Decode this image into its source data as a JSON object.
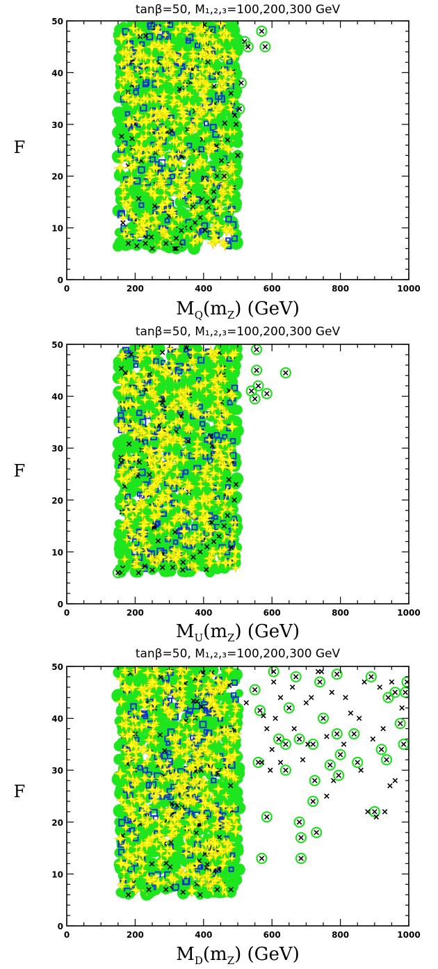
{
  "chart_data": [
    {
      "type": "scatter",
      "title": "tanβ=50, M₁,₂,₃=100,200,300 GeV",
      "xlabel": {
        "main": "M",
        "sub": "Q",
        "rest": "(m",
        "sub2": "Z",
        "tail": ")  (GeV)"
      },
      "ylabel": "F",
      "xlim": [
        0,
        1000
      ],
      "ylim": [
        0,
        50
      ],
      "xticks": [
        0,
        200,
        400,
        600,
        800,
        1000
      ],
      "yticks": [
        0,
        10,
        20,
        30,
        40,
        50
      ],
      "grid": false,
      "dense_region": {
        "x_min": 150,
        "x_max": 500,
        "y_min": 6,
        "y_max": 50
      },
      "edge_points": [
        [
          480,
          36
        ],
        [
          495,
          30
        ],
        [
          470,
          27
        ],
        [
          452,
          23
        ],
        [
          500,
          24
        ],
        [
          440,
          20
        ],
        [
          430,
          17
        ],
        [
          415,
          14
        ],
        [
          410,
          15
        ],
        [
          390,
          12
        ],
        [
          375,
          11
        ],
        [
          360,
          10
        ],
        [
          345,
          10
        ],
        [
          335,
          9.5
        ],
        [
          320,
          8
        ],
        [
          315,
          6
        ],
        [
          290,
          7
        ],
        [
          250,
          6
        ],
        [
          230,
          7
        ],
        [
          205,
          6.5
        ],
        [
          180,
          7
        ]
      ],
      "outliers": [
        [
          520,
          46
        ],
        [
          530,
          45
        ],
        [
          580,
          45
        ],
        [
          570,
          48
        ],
        [
          510,
          38
        ],
        [
          505,
          33
        ],
        [
          500,
          24
        ],
        [
          460,
          20
        ],
        [
          320,
          6
        ]
      ]
    },
    {
      "type": "scatter",
      "title": "tanβ=50, M₁,₂,₃=100,200,300 GeV",
      "xlabel": {
        "main": "M",
        "sub": "U",
        "rest": "(m",
        "sub2": "Z",
        "tail": ")  (GeV)"
      },
      "ylabel": "F",
      "xlim": [
        0,
        1000
      ],
      "ylim": [
        0,
        50
      ],
      "xticks": [
        0,
        200,
        400,
        600,
        800,
        1000
      ],
      "yticks": [
        0,
        10,
        20,
        30,
        40,
        50
      ],
      "grid": false,
      "dense_region": {
        "x_min": 150,
        "x_max": 500,
        "y_min": 6,
        "y_max": 50
      },
      "edge_points": [
        [
          495,
          23
        ],
        [
          490,
          20
        ],
        [
          470,
          17
        ],
        [
          460,
          15
        ],
        [
          445,
          13
        ],
        [
          430,
          12
        ],
        [
          410,
          11
        ],
        [
          390,
          10
        ],
        [
          370,
          9
        ],
        [
          340,
          8
        ],
        [
          310,
          7
        ],
        [
          280,
          7
        ],
        [
          250,
          6.5
        ],
        [
          210,
          6
        ],
        [
          160,
          6
        ]
      ],
      "outliers": [
        [
          555,
          49
        ],
        [
          555,
          45
        ],
        [
          560,
          42
        ],
        [
          550,
          39.5
        ],
        [
          585,
          40.5
        ],
        [
          640,
          44.5
        ],
        [
          150,
          6
        ],
        [
          540,
          41
        ]
      ]
    },
    {
      "type": "scatter",
      "title": "tanβ=50, M₁,₂,₃=100,200,300 GeV",
      "xlabel": {
        "main": "M",
        "sub": "D",
        "rest": "(m",
        "sub2": "Z",
        "tail": ")  (GeV)"
      },
      "ylabel": "F",
      "xlim": [
        0,
        1000
      ],
      "ylim": [
        0,
        50
      ],
      "xticks": [
        0,
        200,
        400,
        600,
        800,
        1000
      ],
      "yticks": [
        0,
        10,
        20,
        30,
        40,
        50
      ],
      "grid": false,
      "dense_region": {
        "x_min": 150,
        "x_max": 505,
        "y_min": 6,
        "y_max": 50
      },
      "edge_points": [
        [
          480,
          7
        ],
        [
          440,
          7
        ],
        [
          390,
          6
        ],
        [
          340,
          6.5
        ],
        [
          290,
          7
        ],
        [
          240,
          7
        ],
        [
          180,
          6
        ]
      ],
      "outliers": [
        [
          525,
          43
        ],
        [
          550,
          45.5
        ],
        [
          565,
          41.5
        ],
        [
          575,
          40.5
        ],
        [
          585,
          38
        ],
        [
          560,
          31.5
        ],
        [
          570,
          31.5
        ],
        [
          585,
          21
        ],
        [
          570,
          13
        ],
        [
          605,
          49
        ],
        [
          610,
          40
        ],
        [
          620,
          36
        ],
        [
          625,
          31.5
        ],
        [
          640,
          35
        ],
        [
          640,
          30
        ],
        [
          650,
          42
        ],
        [
          660,
          46
        ],
        [
          670,
          48
        ],
        [
          680,
          36
        ],
        [
          690,
          32
        ],
        [
          700,
          43
        ],
        [
          720,
          35
        ],
        [
          725,
          28
        ],
        [
          720,
          24
        ],
        [
          730,
          18
        ],
        [
          685,
          17
        ],
        [
          680,
          20
        ],
        [
          685,
          13
        ],
        [
          740,
          47
        ],
        [
          750,
          40
        ],
        [
          760,
          36.5
        ],
        [
          770,
          31
        ],
        [
          780,
          28
        ],
        [
          790,
          37
        ],
        [
          800,
          33
        ],
        [
          795,
          29
        ],
        [
          815,
          44
        ],
        [
          840,
          37
        ],
        [
          850,
          31.5
        ],
        [
          870,
          47
        ],
        [
          890,
          48
        ],
        [
          900,
          22
        ],
        [
          920,
          34
        ],
        [
          935,
          32
        ],
        [
          940,
          44
        ],
        [
          950,
          47
        ],
        [
          930,
          22
        ],
        [
          960,
          45
        ],
        [
          975,
          39
        ],
        [
          985,
          35
        ],
        [
          990,
          45
        ],
        [
          995,
          47
        ],
        [
          960,
          28
        ],
        [
          980,
          42
        ],
        [
          745,
          49
        ],
        [
          735,
          49
        ],
        [
          790,
          48.5
        ],
        [
          830,
          41
        ],
        [
          860,
          30
        ],
        [
          880,
          22
        ],
        [
          905,
          21
        ],
        [
          925,
          38
        ],
        [
          945,
          27
        ],
        [
          760,
          25
        ],
        [
          705,
          35
        ],
        [
          665,
          38
        ],
        [
          625,
          44
        ],
        [
          605,
          47
        ],
        [
          595,
          30
        ],
        [
          600,
          34
        ],
        [
          715,
          44
        ],
        [
          775,
          45
        ],
        [
          810,
          35
        ],
        [
          855,
          40
        ],
        [
          895,
          36
        ],
        [
          915,
          46
        ]
      ],
      "circled": [
        [
          550,
          45.5
        ],
        [
          565,
          41.5
        ],
        [
          560,
          31.5
        ],
        [
          585,
          21
        ],
        [
          570,
          13
        ],
        [
          605,
          49
        ],
        [
          640,
          35
        ],
        [
          640,
          30
        ],
        [
          650,
          42
        ],
        [
          680,
          36
        ],
        [
          670,
          48
        ],
        [
          720,
          35
        ],
        [
          725,
          28
        ],
        [
          720,
          24
        ],
        [
          730,
          18
        ],
        [
          685,
          17
        ],
        [
          680,
          20
        ],
        [
          685,
          13
        ],
        [
          740,
          47
        ],
        [
          750,
          40
        ],
        [
          770,
          31
        ],
        [
          790,
          37
        ],
        [
          800,
          33
        ],
        [
          795,
          29
        ],
        [
          840,
          37
        ],
        [
          850,
          31.5
        ],
        [
          890,
          48
        ],
        [
          900,
          22
        ],
        [
          920,
          34
        ],
        [
          935,
          32
        ],
        [
          940,
          44
        ],
        [
          960,
          45
        ],
        [
          975,
          39
        ],
        [
          985,
          35
        ],
        [
          990,
          45
        ],
        [
          995,
          47
        ],
        [
          790,
          48.5
        ],
        [
          620,
          36
        ]
      ]
    }
  ]
}
